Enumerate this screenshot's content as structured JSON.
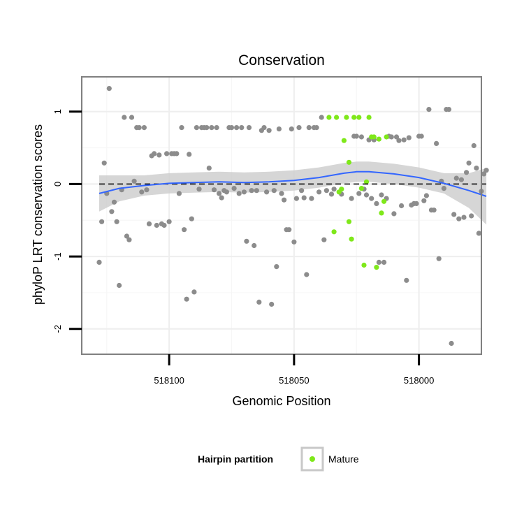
{
  "chart_data": {
    "type": "scatter",
    "title": "Conservation",
    "xlabel": "Genomic Position",
    "ylabel": "phyloP LRT conservation scores",
    "x_reversed": true,
    "xlim": [
      518135,
      517975
    ],
    "ylim": [
      -2.35,
      1.48
    ],
    "x_ticks": [
      518100,
      518050,
      518000
    ],
    "x_tick_labels": [
      "518100",
      "518050",
      "518000"
    ],
    "y_ticks": [
      1,
      0,
      -1,
      -2
    ],
    "y_tick_labels": [
      "1",
      "0",
      "-1",
      "-2"
    ],
    "grid": true,
    "reference_line": {
      "y": 0,
      "style": "dashed"
    },
    "legend": {
      "title": "Hairpin partition",
      "placement": "bottom",
      "entries": [
        "Mature"
      ]
    },
    "colors": {
      "other": "#8c8c8c",
      "mature": "#7fe81a",
      "smooth": "#3366ff",
      "band": "#cccccc"
    },
    "series": [
      {
        "name": "",
        "color": "#8c8c8c",
        "points": [
          [
            518128,
            -1.08
          ],
          [
            518127,
            -0.52
          ],
          [
            518126,
            0.29
          ],
          [
            518125,
            -0.13
          ],
          [
            518124,
            1.32
          ],
          [
            518123,
            -0.38
          ],
          [
            518122,
            -0.25
          ],
          [
            518121,
            -0.52
          ],
          [
            518120,
            -1.4
          ],
          [
            518119,
            -0.08
          ],
          [
            518118,
            0.92
          ],
          [
            518117,
            -0.72
          ],
          [
            518116,
            -0.77
          ],
          [
            518115,
            0.92
          ],
          [
            518114,
            0.04
          ],
          [
            518113,
            0.78
          ],
          [
            518112,
            0.78
          ],
          [
            518111,
            -0.11
          ],
          [
            518110,
            0.78
          ],
          [
            518109,
            -0.08
          ],
          [
            518108,
            -0.55
          ],
          [
            518107,
            0.39
          ],
          [
            518106,
            0.42
          ],
          [
            518105,
            -0.57
          ],
          [
            518104,
            0.4
          ],
          [
            518103,
            -0.55
          ],
          [
            518102,
            -0.57
          ],
          [
            518101,
            0.42
          ],
          [
            518100,
            -0.52
          ],
          [
            518099,
            0.42
          ],
          [
            518098,
            0.42
          ],
          [
            518097,
            0.42
          ],
          [
            518096,
            -0.13
          ],
          [
            518095,
            0.78
          ],
          [
            518094,
            -0.63
          ],
          [
            518093,
            -1.59
          ],
          [
            518092,
            0.41
          ],
          [
            518091,
            -0.48
          ],
          [
            518090,
            -1.49
          ],
          [
            518089,
            0.78
          ],
          [
            518088,
            -0.07
          ],
          [
            518087,
            0.78
          ],
          [
            518086,
            0.78
          ],
          [
            518085,
            0.78
          ],
          [
            518084,
            0.22
          ],
          [
            518083,
            0.78
          ],
          [
            518082,
            -0.08
          ],
          [
            518081,
            0.78
          ],
          [
            518080,
            -0.13
          ],
          [
            518079,
            -0.19
          ],
          [
            518078,
            -0.09
          ],
          [
            518077,
            -0.11
          ],
          [
            518076,
            0.78
          ],
          [
            518075,
            0.78
          ],
          [
            518074,
            -0.06
          ],
          [
            518073,
            0.78
          ],
          [
            518072,
            -0.13
          ],
          [
            518071,
            0.78
          ],
          [
            518070,
            -0.11
          ],
          [
            518069,
            -0.79
          ],
          [
            518068,
            0.78
          ],
          [
            518067,
            -0.09
          ],
          [
            518066,
            -0.85
          ],
          [
            518065,
            -0.09
          ],
          [
            518064,
            -1.63
          ],
          [
            518063,
            0.74
          ],
          [
            518062,
            0.78
          ],
          [
            518061,
            -0.11
          ],
          [
            518060,
            0.74
          ],
          [
            518059,
            -1.66
          ],
          [
            518058,
            -0.09
          ],
          [
            518057,
            -1.14
          ],
          [
            518056,
            0.76
          ],
          [
            518055,
            -0.13
          ],
          [
            518054,
            -0.22
          ],
          [
            518053,
            -0.63
          ],
          [
            518052,
            -0.63
          ],
          [
            518051,
            0.76
          ],
          [
            518050,
            -0.8
          ],
          [
            518049,
            -0.2
          ],
          [
            518048,
            0.78
          ],
          [
            518047,
            -0.09
          ],
          [
            518046,
            -0.19
          ],
          [
            518045,
            -1.25
          ],
          [
            518044,
            0.78
          ],
          [
            518043,
            -0.2
          ],
          [
            518042,
            0.78
          ],
          [
            518041,
            0.78
          ],
          [
            518040,
            -0.11
          ],
          [
            518039,
            0.92
          ],
          [
            518038,
            -0.77
          ],
          [
            518037,
            -0.09
          ],
          [
            518035,
            -0.14
          ],
          [
            518034,
            -0.07
          ],
          [
            518031,
            -0.14
          ],
          [
            518027,
            -0.2
          ],
          [
            518026,
            0.66
          ],
          [
            518025,
            0.66
          ],
          [
            518024,
            -0.13
          ],
          [
            518023,
            0.65
          ],
          [
            518022,
            -0.07
          ],
          [
            518021,
            -0.15
          ],
          [
            518020,
            0.61
          ],
          [
            518019,
            -0.2
          ],
          [
            518018,
            0.61
          ],
          [
            518017,
            -0.27
          ],
          [
            518016,
            -1.08
          ],
          [
            518015,
            -0.15
          ],
          [
            518014,
            -1.08
          ],
          [
            518013,
            -0.2
          ],
          [
            518012,
            0.66
          ],
          [
            518011,
            0.65
          ],
          [
            518010,
            -0.41
          ],
          [
            518009,
            0.65
          ],
          [
            518008,
            0.6
          ],
          [
            518007,
            -0.3
          ],
          [
            518006,
            0.61
          ],
          [
            518005,
            -1.33
          ],
          [
            518004,
            0.64
          ],
          [
            518003,
            -0.29
          ],
          [
            518002,
            -0.27
          ],
          [
            518001,
            -0.27
          ],
          [
            518000,
            0.66
          ],
          [
            517999,
            0.66
          ],
          [
            517998,
            -0.23
          ],
          [
            517997,
            -0.16
          ],
          [
            517996,
            1.03
          ],
          [
            517995,
            -0.36
          ],
          [
            517994,
            -0.36
          ],
          [
            517993,
            0.56
          ],
          [
            517992,
            -1.03
          ],
          [
            517991,
            0.04
          ],
          [
            517990,
            -0.06
          ],
          [
            517989,
            1.03
          ],
          [
            517988,
            1.03
          ],
          [
            517987,
            -2.2
          ],
          [
            517986,
            -0.42
          ],
          [
            517985,
            0.08
          ],
          [
            517984,
            -0.48
          ],
          [
            517983,
            0.06
          ],
          [
            517982,
            -0.46
          ],
          [
            517981,
            0.16
          ],
          [
            517980,
            0.29
          ],
          [
            517979,
            -0.44
          ],
          [
            517978,
            0.53
          ],
          [
            517977,
            0.22
          ],
          [
            517976,
            -0.68
          ],
          [
            517975,
            -0.1
          ],
          [
            517974,
            0.14
          ],
          [
            517973,
            0.19
          ]
        ]
      },
      {
        "name": "Mature",
        "color": "#7fe81a",
        "points": [
          [
            518036,
            0.92
          ],
          [
            518033,
            0.92
          ],
          [
            518032,
            -0.11
          ],
          [
            518031,
            -0.07
          ],
          [
            518030,
            0.6
          ],
          [
            518029,
            0.92
          ],
          [
            518028,
            -0.52
          ],
          [
            518026,
            0.92
          ],
          [
            518024,
            0.92
          ],
          [
            518023,
            -0.06
          ],
          [
            518022,
            -1.12
          ],
          [
            518021,
            0.03
          ],
          [
            518020,
            0.92
          ],
          [
            518019,
            0.65
          ],
          [
            518018,
            0.65
          ],
          [
            518017,
            -1.15
          ],
          [
            518016,
            0.62
          ],
          [
            518015,
            -0.4
          ],
          [
            518014,
            -0.24
          ],
          [
            518013,
            0.65
          ],
          [
            518028,
            0.3
          ],
          [
            518034,
            -0.66
          ],
          [
            518027,
            -0.76
          ]
        ]
      }
    ],
    "smooth": {
      "x": [
        518128,
        518120,
        518110,
        518100,
        518090,
        518080,
        518070,
        518060,
        518050,
        518040,
        518030,
        518025,
        518020,
        518010,
        518000,
        517990,
        517980,
        517973
      ],
      "y": [
        -0.13,
        -0.06,
        -0.02,
        0.01,
        0.02,
        0.03,
        0.02,
        0.03,
        0.05,
        0.09,
        0.15,
        0.17,
        0.17,
        0.14,
        0.09,
        0.01,
        -0.09,
        -0.17
      ],
      "lower": [
        -0.38,
        -0.24,
        -0.16,
        -0.13,
        -0.12,
        -0.11,
        -0.12,
        -0.11,
        -0.09,
        -0.05,
        0.01,
        0.03,
        0.03,
        0.0,
        -0.05,
        -0.13,
        -0.33,
        -0.56
      ],
      "upper": [
        0.12,
        0.12,
        0.12,
        0.15,
        0.16,
        0.17,
        0.16,
        0.17,
        0.19,
        0.23,
        0.29,
        0.31,
        0.31,
        0.28,
        0.23,
        0.15,
        0.15,
        0.22
      ]
    }
  }
}
